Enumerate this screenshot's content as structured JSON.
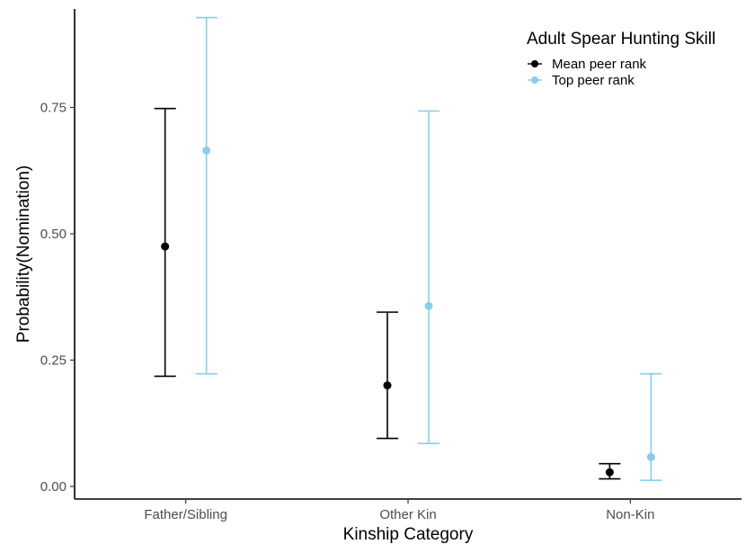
{
  "chart_data": {
    "type": "errorbar",
    "xlabel": "Kinship Category",
    "ylabel": "Probability(Nomination)",
    "categories": [
      "Father/Sibling",
      "Other Kin",
      "Non-Kin"
    ],
    "ylim": [
      -0.025,
      0.945
    ],
    "yticks": [
      0.0,
      0.25,
      0.5,
      0.75
    ],
    "ytick_labels": [
      "0.00",
      "0.25",
      "0.50",
      "0.75"
    ],
    "grid": false,
    "legend": {
      "title": "Adult Spear Hunting Skill",
      "position": "top-right"
    },
    "series": [
      {
        "name": "Mean peer rank",
        "color": "#000000",
        "points": [
          {
            "category": "Father/Sibling",
            "y": 0.475,
            "lower": 0.218,
            "upper": 0.748
          },
          {
            "category": "Other Kin",
            "y": 0.2,
            "lower": 0.095,
            "upper": 0.345
          },
          {
            "category": "Non-Kin",
            "y": 0.028,
            "lower": 0.015,
            "upper": 0.045
          }
        ]
      },
      {
        "name": "Top peer rank",
        "color": "#87ceeb",
        "points": [
          {
            "category": "Father/Sibling",
            "y": 0.665,
            "lower": 0.223,
            "upper": 0.928
          },
          {
            "category": "Other Kin",
            "y": 0.357,
            "lower": 0.085,
            "upper": 0.743
          },
          {
            "category": "Non-Kin",
            "y": 0.058,
            "lower": 0.012,
            "upper": 0.223
          }
        ]
      }
    ]
  }
}
